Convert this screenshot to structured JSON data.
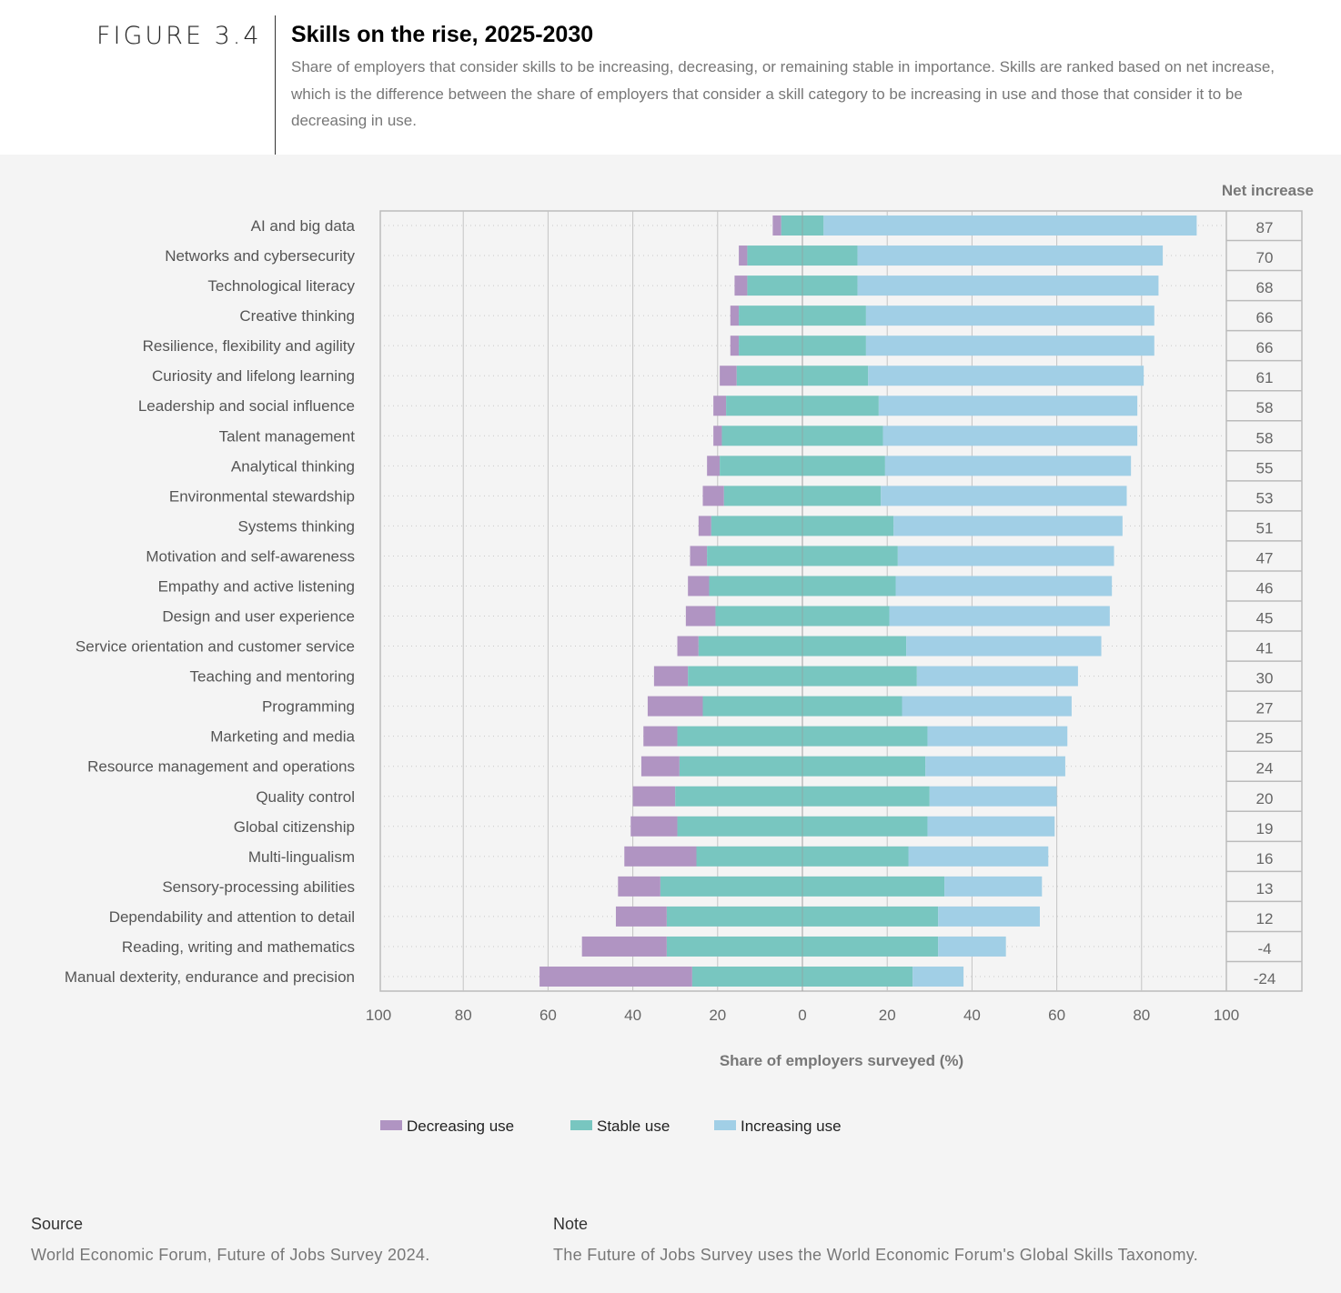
{
  "header": {
    "figure_label": "FIGURE 3.4",
    "title": "Skills on the rise, 2025-2030",
    "subtitle": "Share of employers that consider skills to be increasing, decreasing, or remaining stable in importance. Skills are ranked based on net increase, which is the difference between the share of employers that consider a skill category to be increasing in use and those that consider it to be decreasing in use."
  },
  "footer": {
    "source_heading": "Source",
    "source_text": "World Economic Forum, Future of Jobs Survey 2024.",
    "note_heading": "Note",
    "note_text": "The Future of Jobs Survey uses the World Economic Forum's Global Skills Taxonomy."
  },
  "chart_data": {
    "type": "bar",
    "orientation": "horizontal-diverging-stacked",
    "xlabel": "Share of employers surveyed (%)",
    "net_column_title": "Net increase",
    "xlim": [
      -100,
      100
    ],
    "xticks": [
      -100,
      -80,
      -60,
      -40,
      -20,
      0,
      20,
      40,
      60,
      80,
      100
    ],
    "xtick_labels": [
      "100",
      "80",
      "60",
      "40",
      "20",
      "0",
      "20",
      "40",
      "60",
      "80",
      "100"
    ],
    "legend_position": "bottom",
    "colors": {
      "decreasing": "#b094c2",
      "stable": "#78c6c0",
      "increasing": "#a1cfe6"
    },
    "legend": [
      "Decreasing use",
      "Stable use",
      "Increasing use"
    ],
    "categories": [
      "AI and big data",
      "Networks and cybersecurity",
      "Technological literacy",
      "Creative thinking",
      "Resilience, flexibility and agility",
      "Curiosity and lifelong learning",
      "Leadership and social influence",
      "Talent management",
      "Analytical thinking",
      "Environmental stewardship",
      "Systems thinking",
      "Motivation and self-awareness",
      "Empathy and active listening",
      "Design and user experience",
      "Service orientation and customer service",
      "Teaching and mentoring",
      "Programming",
      "Marketing and media",
      "Resource management and operations",
      "Quality control",
      "Global citizenship",
      "Multi-lingualism",
      "Sensory-processing abilities",
      "Dependability and attention to detail",
      "Reading, writing and mathematics",
      "Manual dexterity, endurance and precision"
    ],
    "series": [
      {
        "name": "Decreasing use",
        "values": [
          2,
          2,
          3,
          2,
          2,
          4,
          3,
          2,
          3,
          5,
          3,
          4,
          5,
          7,
          5,
          8,
          13,
          8,
          9,
          10,
          11,
          17,
          10,
          12,
          20,
          36
        ]
      },
      {
        "name": "Stable use",
        "values": [
          10,
          26,
          26,
          30,
          30,
          31,
          36,
          38,
          39,
          37,
          43,
          45,
          44,
          41,
          49,
          54,
          47,
          59,
          58,
          60,
          59,
          50,
          67,
          64,
          64,
          52
        ]
      },
      {
        "name": "Increasing use",
        "values": [
          88,
          72,
          71,
          68,
          68,
          65,
          61,
          60,
          58,
          58,
          54,
          51,
          51,
          52,
          46,
          38,
          40,
          33,
          33,
          30,
          30,
          33,
          23,
          24,
          16,
          12
        ]
      }
    ],
    "net_increase": [
      "87",
      "70",
      "68",
      "66",
      "66",
      "61",
      "58",
      "58",
      "55",
      "53",
      "51",
      "47",
      "46",
      "45",
      "41",
      "30",
      "27",
      "25",
      "24",
      "20",
      "19",
      "16",
      "13",
      "12",
      "-4",
      "-24"
    ]
  }
}
